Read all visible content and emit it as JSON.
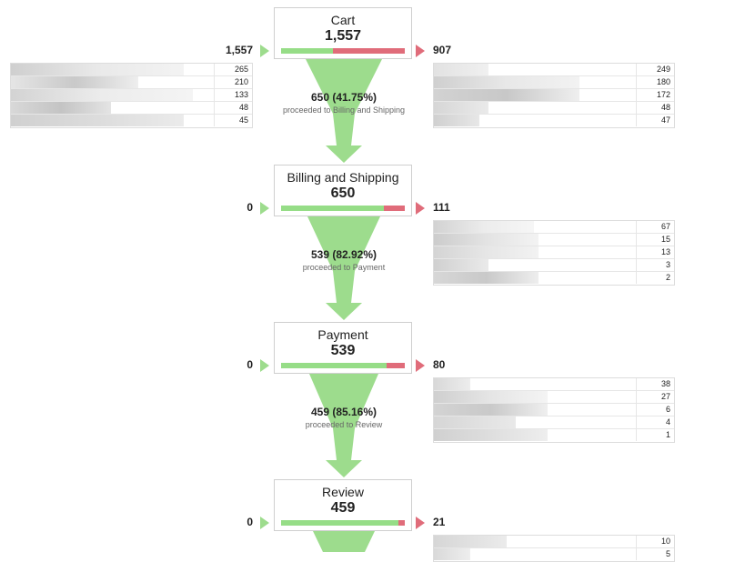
{
  "funnel": {
    "stages": [
      {
        "name": "Cart",
        "count": "1,557",
        "entries": "1,557",
        "exits": "907",
        "pass_fraction": 0.42
      },
      {
        "name": "Billing and Shipping",
        "count": "650",
        "entries": "0",
        "exits": "111",
        "pass_fraction": 0.83
      },
      {
        "name": "Payment",
        "count": "539",
        "entries": "0",
        "exits": "80",
        "pass_fraction": 0.85
      },
      {
        "name": "Review",
        "count": "459",
        "entries": "0",
        "exits": "21",
        "pass_fraction": 0.95
      }
    ],
    "transitions": [
      {
        "main": "650 (41.75%)",
        "sub": "proceeded to Billing and Shipping"
      },
      {
        "main": "539 (82.92%)",
        "sub": "proceeded to Payment"
      },
      {
        "main": "459 (85.16%)",
        "sub": "proceeded to Review"
      }
    ],
    "entry_sources": [
      {
        "rows": [
          "265",
          "210",
          "133",
          "48",
          "45"
        ]
      }
    ],
    "exit_destinations": [
      {
        "rows": [
          "249",
          "180",
          "172",
          "48",
          "47"
        ]
      },
      {
        "rows": [
          "67",
          "15",
          "13",
          "3",
          "2"
        ]
      },
      {
        "rows": [
          "38",
          "27",
          "6",
          "4",
          "1"
        ]
      },
      {
        "rows": [
          "10",
          "5"
        ]
      }
    ]
  },
  "colors": {
    "pass": "#96dd87",
    "exit": "#e06c7a",
    "funnel": "#9ddc8d",
    "blurred_cell": "#d9d9d9"
  }
}
